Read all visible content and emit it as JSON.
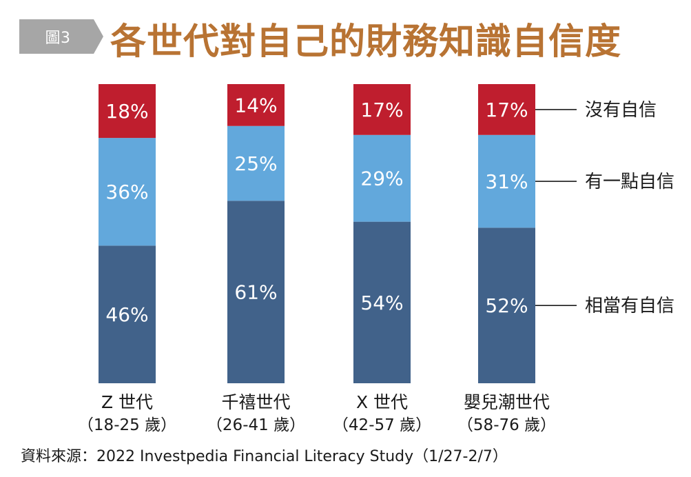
{
  "figure_tag": "圖3",
  "title": "各世代對自己的財務知識自信度",
  "colors": {
    "tag_bg": "#a6a6a6",
    "title": "#b87333",
    "no_confidence": "#bf1e2e",
    "somewhat_confident": "#62a8dc",
    "very_confident": "#41628a"
  },
  "chart_data": {
    "type": "bar",
    "stacked": true,
    "normalized_percent": true,
    "categories": [
      "Z 世代",
      "千禧世代",
      "X 世代",
      "嬰兒潮世代"
    ],
    "category_subtitles": [
      "（18-25 歲）",
      "（26-41 歲）",
      "（42-57 歲）",
      "（58-76 歲）"
    ],
    "series": [
      {
        "name": "相當有自信",
        "values": [
          46,
          61,
          54,
          52
        ],
        "labels": [
          "46%",
          "61%",
          "54%",
          "52%"
        ],
        "color": "#41628a"
      },
      {
        "name": "有一點自信",
        "values": [
          36,
          25,
          29,
          31
        ],
        "labels": [
          "36%",
          "25%",
          "29%",
          "31%"
        ],
        "color": "#62a8dc"
      },
      {
        "name": "沒有自信",
        "values": [
          18,
          14,
          17,
          17
        ],
        "labels": [
          "18%",
          "14%",
          "17%",
          "17%"
        ],
        "color": "#bf1e2e"
      }
    ],
    "legend_position": "right",
    "grid": false
  },
  "source_note": "資料來源：2022 Investpedia Financial Literacy Study（1/27-2/7）"
}
